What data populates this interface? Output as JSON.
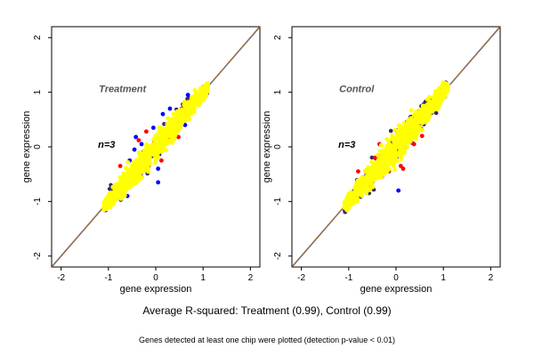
{
  "caption": {
    "r_squared": "Average R-squared: Treatment (0.99), Control (0.99)",
    "note": "Genes detected at least one chip were plotted (detection p-value < 0.01)"
  },
  "colors": {
    "background": "#ffffff",
    "cloud": "#ffff00",
    "outlier_blue": "#0000ff",
    "outlier_red": "#ff0000",
    "outlier_dark": "#3a2a6a",
    "diagonal_outer": "#1f2a6e",
    "diagonal_inner": "#e08a10",
    "label_gray": "#555555"
  },
  "chart_data": [
    {
      "type": "scatter",
      "title": "",
      "annotation": "Treatment",
      "sample_size_label": "n=3",
      "xlabel": "gene expression",
      "ylabel": "gene expression",
      "xlim": [
        -2.2,
        2.2
      ],
      "ylim": [
        -2.2,
        2.2
      ],
      "x_ticks": [
        "-2",
        "-1",
        "0",
        "1",
        "2"
      ],
      "y_ticks": [
        "-2",
        "-1",
        "0",
        "1",
        "2"
      ],
      "reference_line": "y = x",
      "point_cloud": {
        "x_range": [
          -1.1,
          1.1
        ],
        "spread": 0.12
      },
      "outliers": [
        {
          "x": -0.45,
          "y": -0.05,
          "color": "blue"
        },
        {
          "x": -0.42,
          "y": 0.18,
          "color": "blue"
        },
        {
          "x": -0.36,
          "y": 0.12,
          "color": "red"
        },
        {
          "x": -0.3,
          "y": 0.05,
          "color": "blue"
        },
        {
          "x": -0.2,
          "y": 0.28,
          "color": "red"
        },
        {
          "x": -0.15,
          "y": -0.35,
          "color": "red"
        },
        {
          "x": -0.05,
          "y": 0.35,
          "color": "blue"
        },
        {
          "x": 0.05,
          "y": -0.4,
          "color": "blue"
        },
        {
          "x": 0.12,
          "y": -0.25,
          "color": "red"
        },
        {
          "x": 0.3,
          "y": 0.7,
          "color": "blue"
        },
        {
          "x": 0.35,
          "y": 0.45,
          "color": "red"
        },
        {
          "x": 0.42,
          "y": 0.2,
          "color": "blue"
        },
        {
          "x": 0.48,
          "y": 0.18,
          "color": "red"
        },
        {
          "x": 0.55,
          "y": 0.7,
          "color": "red"
        },
        {
          "x": 0.62,
          "y": 0.4,
          "color": "blue"
        },
        {
          "x": 0.68,
          "y": 0.95,
          "color": "blue"
        },
        {
          "x": 0.72,
          "y": 0.85,
          "color": "red"
        },
        {
          "x": 0.15,
          "y": 0.6,
          "color": "blue"
        },
        {
          "x": -0.6,
          "y": -0.9,
          "color": "blue"
        },
        {
          "x": -0.3,
          "y": -0.55,
          "color": "red"
        },
        {
          "x": 0.05,
          "y": -0.65,
          "color": "blue"
        },
        {
          "x": -0.75,
          "y": -0.35,
          "color": "red"
        },
        {
          "x": -0.55,
          "y": -0.25,
          "color": "blue"
        },
        {
          "x": 0.25,
          "y": 0.15,
          "color": "red"
        }
      ]
    },
    {
      "type": "scatter",
      "title": "",
      "annotation": "Control",
      "sample_size_label": "n=3",
      "xlabel": "gene expression",
      "ylabel": "gene expression",
      "xlim": [
        -2.2,
        2.2
      ],
      "ylim": [
        -2.2,
        2.2
      ],
      "x_ticks": [
        "-2",
        "-1",
        "0",
        "1",
        "2"
      ],
      "y_ticks": [
        "-2",
        "-1",
        "0",
        "1",
        "2"
      ],
      "reference_line": "y = x",
      "point_cloud": {
        "x_range": [
          -1.1,
          1.1
        ],
        "spread": 0.13
      },
      "outliers": [
        {
          "x": -0.6,
          "y": -0.6,
          "color": "red"
        },
        {
          "x": -0.45,
          "y": -0.2,
          "color": "red"
        },
        {
          "x": -0.3,
          "y": -0.55,
          "color": "red"
        },
        {
          "x": -0.2,
          "y": -0.2,
          "color": "blue"
        },
        {
          "x": -0.05,
          "y": 0.12,
          "color": "red"
        },
        {
          "x": 0.05,
          "y": -0.8,
          "color": "blue"
        },
        {
          "x": 0.1,
          "y": -0.35,
          "color": "red"
        },
        {
          "x": 0.15,
          "y": -0.4,
          "color": "red"
        },
        {
          "x": 0.22,
          "y": 0.45,
          "color": "blue"
        },
        {
          "x": 0.28,
          "y": 0.22,
          "color": "red"
        },
        {
          "x": 0.33,
          "y": 0.55,
          "color": "blue"
        },
        {
          "x": 0.38,
          "y": 0.05,
          "color": "red"
        },
        {
          "x": 0.45,
          "y": 0.3,
          "color": "blue"
        },
        {
          "x": 0.5,
          "y": 0.6,
          "color": "red"
        },
        {
          "x": 0.55,
          "y": 0.2,
          "color": "red"
        },
        {
          "x": -0.35,
          "y": 0.05,
          "color": "red"
        },
        {
          "x": -0.8,
          "y": -0.45,
          "color": "red"
        },
        {
          "x": 0.65,
          "y": 0.55,
          "color": "red"
        },
        {
          "x": 0.0,
          "y": 0.3,
          "color": "blue"
        },
        {
          "x": -0.15,
          "y": -0.45,
          "color": "red"
        }
      ]
    }
  ]
}
